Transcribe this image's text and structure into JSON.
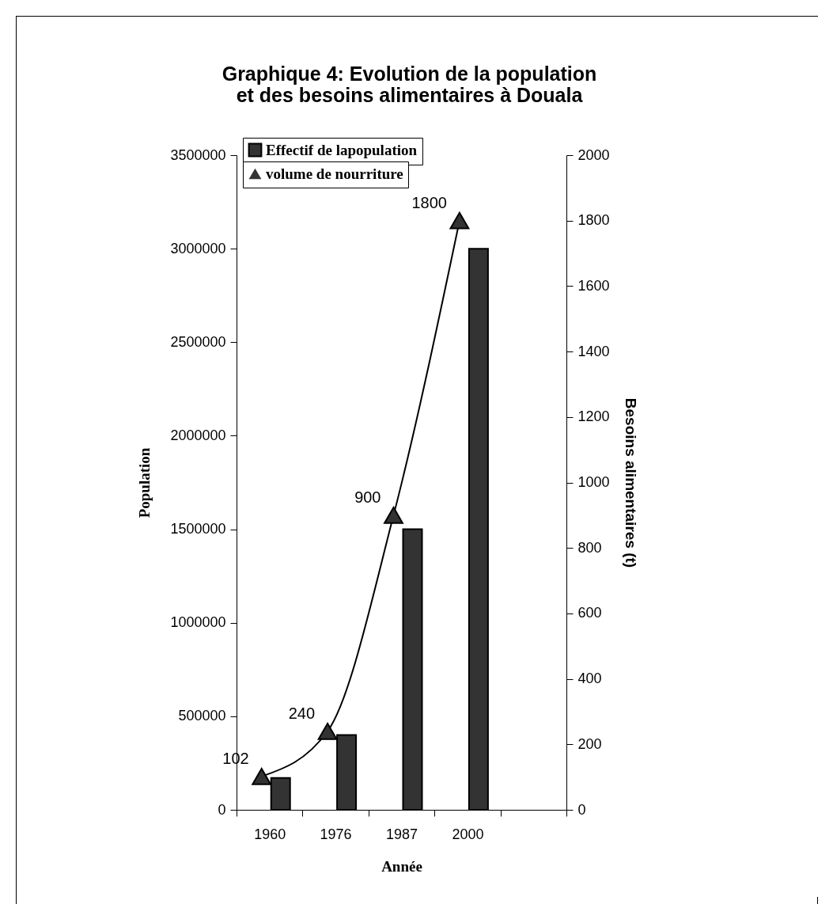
{
  "chart_data": {
    "type": "bar",
    "title": "Graphique 4: Evolution de  la population et des besoins alimentaires à Douala",
    "xlabel": "Année",
    "ylabel": "Population",
    "y2label": "Besoins alimentaires (t)",
    "categories": [
      "1960",
      "1976",
      "1987",
      "2000",
      null
    ],
    "series": [
      {
        "name": "Effectif de lapopulation",
        "color": "#333333",
        "values": [
          170000,
          400000,
          1500000,
          3000000,
          null
        ]
      },
      {
        "name": "volume de nourriture",
        "type": "line",
        "axis": "y2",
        "color": "#333333",
        "values": [
          102,
          240,
          900,
          1800,
          null
        ],
        "value_labels": [
          "102",
          "240",
          "900",
          "1800",
          null
        ]
      }
    ],
    "ylim": [
      0,
      3500000
    ],
    "yticks": [
      0,
      500000,
      1000000,
      1500000,
      2000000,
      2500000,
      3000000,
      3500000
    ],
    "y2lim": [
      0,
      2000
    ],
    "y2ticks": [
      0,
      200,
      400,
      600,
      800,
      1000,
      1200,
      1400,
      1600,
      1800,
      2000
    ],
    "legend": "top left",
    "marker": "triangle",
    "line_style": "solid",
    "grid": false
  }
}
